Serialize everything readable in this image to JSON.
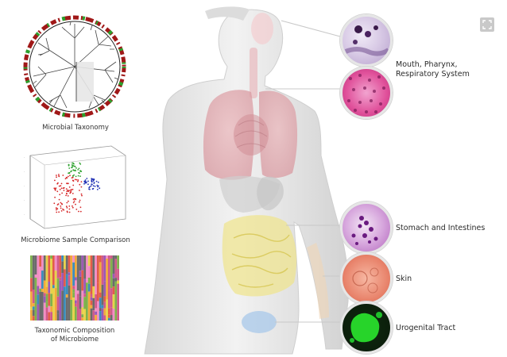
{
  "panels": {
    "taxonomy_caption": "Microbial Taxonomy",
    "scatter_caption": "Microbiome Sample Comparison",
    "composition_caption_line1": "Taxonomic Composition",
    "composition_caption_line2": "of Microbiome"
  },
  "sites": [
    {
      "id": "mouth",
      "label_line1": "Mouth, Pharynx,",
      "label_line2": "Respiratory System"
    },
    {
      "id": "stomach",
      "label_line1": "Stomach and Intestines",
      "label_line2": ""
    },
    {
      "id": "skin",
      "label_line1": "Skin",
      "label_line2": ""
    },
    {
      "id": "urogenital",
      "label_line1": "Urogenital Tract",
      "label_line2": ""
    }
  ],
  "icons": {
    "fullscreen": "fullscreen-icon"
  },
  "colors": {
    "lung": "#e9a0a6",
    "intestine": "#f0e48a",
    "bladder": "#a8c8ea",
    "mouth_tissue": "#b98fd0",
    "respiratory_tissue": "#e0509a",
    "stomach_tissue": "#c061c8",
    "skin_tissue": "#e8826a",
    "urogenital_tissue": "#1fbf2a"
  }
}
